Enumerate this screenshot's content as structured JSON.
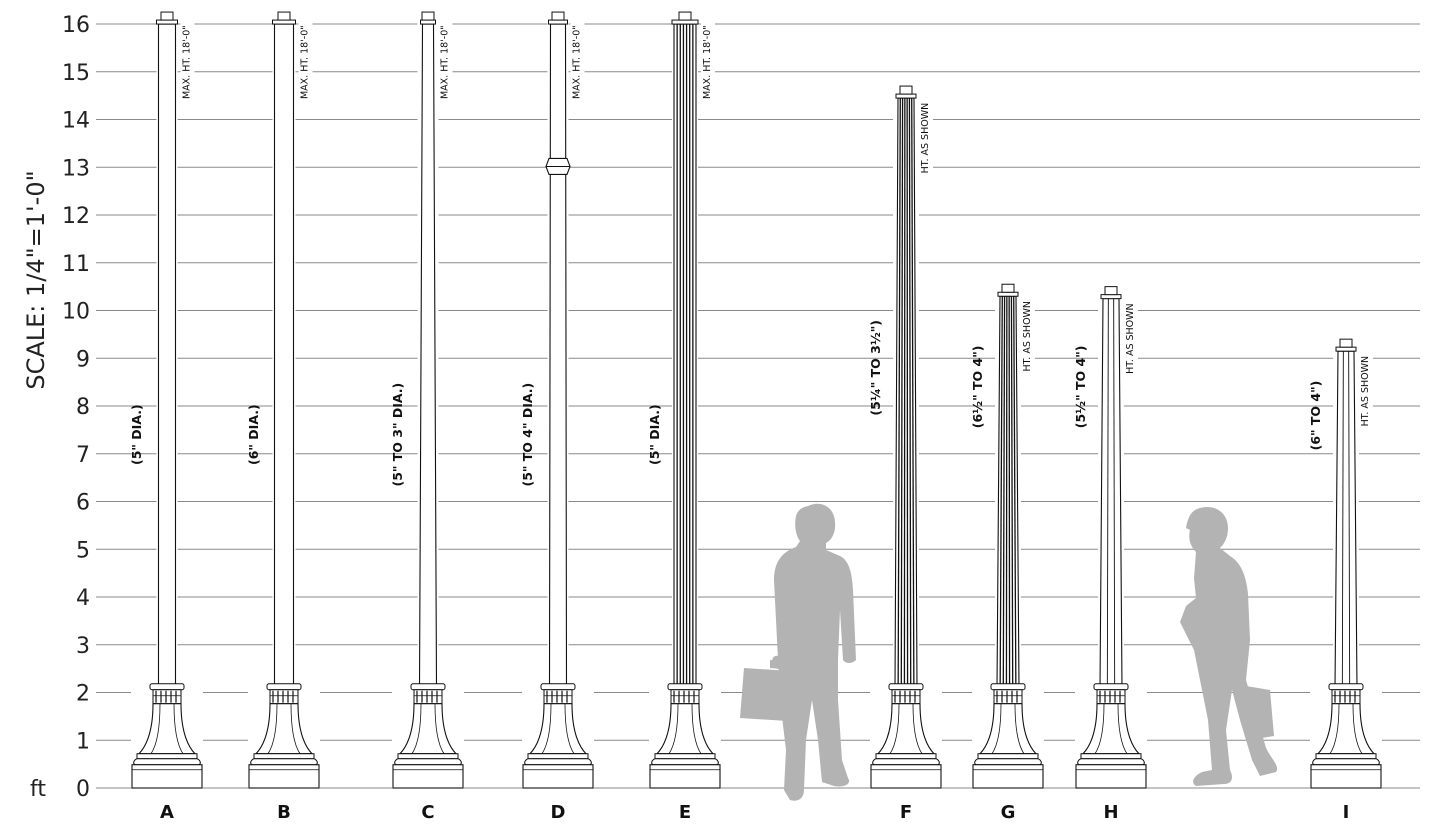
{
  "scale_label": "SCALE:  1/4\"=1'-0\"",
  "unit_label": "ft",
  "ticks": [
    "0",
    "1",
    "2",
    "3",
    "4",
    "5",
    "6",
    "7",
    "8",
    "9",
    "10",
    "11",
    "12",
    "13",
    "14",
    "15",
    "16"
  ],
  "posts": [
    {
      "id": "A",
      "dia": "(5\" DIA.)",
      "note": "MAX. HT.  18'-0\"",
      "height_ft": 16.25,
      "style": "smooth",
      "taper": false
    },
    {
      "id": "B",
      "dia": "(6\" DIA.)",
      "note": "MAX. HT.  18'-0\"",
      "height_ft": 16.25,
      "style": "smooth",
      "taper": false
    },
    {
      "id": "C",
      "dia": "(5\" TO 3\" DIA.)",
      "note": "MAX. HT.  18'-0\"",
      "height_ft": 16.25,
      "style": "smooth",
      "taper": true
    },
    {
      "id": "D",
      "dia": "(5\" TO 4\" DIA.)",
      "note": "MAX. HT.  18'-0\"",
      "height_ft": 16.25,
      "style": "collar",
      "taper": true
    },
    {
      "id": "E",
      "dia": "(5\" DIA.)",
      "note": "MAX. HT.  18'-0\"",
      "height_ft": 16.25,
      "style": "fluted",
      "taper": false
    },
    {
      "id": "F",
      "dia": "(5¼\" TO 3½\")",
      "note": "HT.  AS SHOWN",
      "height_ft": 14.7,
      "style": "fluted",
      "taper": true
    },
    {
      "id": "G",
      "dia": "(6½\" TO 4\")",
      "note": "HT.  AS SHOWN",
      "height_ft": 10.55,
      "style": "fluted",
      "taper": true
    },
    {
      "id": "H",
      "dia": "(5½\" TO 4\")",
      "note": "HT.  AS SHOWN",
      "height_ft": 10.5,
      "style": "fluted-light",
      "taper": true
    },
    {
      "id": "I",
      "dia": "(6\" TO 4\")",
      "note": "HT.  AS SHOWN",
      "height_ft": 9.4,
      "style": "fluted-light",
      "taper": true
    }
  ],
  "colors": {
    "grid": "#8a8a8a",
    "line": "#111111",
    "silhouette": "#b3b3b3"
  }
}
